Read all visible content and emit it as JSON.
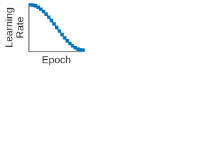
{
  "chart_data": {
    "type": "line",
    "y_label_lines": [
      "Learning",
      "Rate"
    ],
    "x_label": "Epoch",
    "x": [
      0,
      2,
      4,
      6,
      8,
      10,
      12,
      14,
      16,
      18,
      20,
      22,
      24,
      26,
      28,
      30,
      32,
      34,
      36,
      38,
      40
    ],
    "series": [
      {
        "color": "#0072bd",
        "values": [
          1,
          0.994,
          0.976,
          0.946,
          0.905,
          0.854,
          0.794,
          0.727,
          0.655,
          0.578,
          0.5,
          0.422,
          0.345,
          0.273,
          0.206,
          0.146,
          0.095,
          0.054,
          0.024,
          0.006,
          0
        ]
      }
    ],
    "xlim": [
      0,
      40
    ],
    "ylim": [
      0,
      1
    ],
    "grid": false
  }
}
